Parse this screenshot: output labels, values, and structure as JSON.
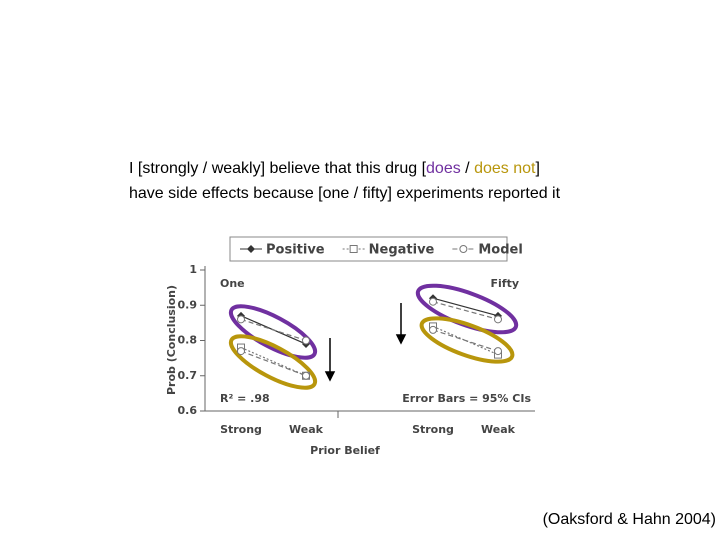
{
  "slide": {
    "line1_a": "I [strongly / weakly] believe that this drug [",
    "does": "does",
    "sep": " / ",
    "does_not": "does not",
    "line1_b": "]",
    "line2": "have side effects because [one / fifty] experiments reported it",
    "citation": "(Oaksford & Hahn 2004)"
  },
  "chart_data": {
    "type": "line",
    "y_label": "Prob (Conclusion)",
    "x_label": "Prior Belief",
    "panel_labels": [
      "One",
      "Fifty"
    ],
    "annotations": [
      "R² = .98",
      "Error Bars = 95% CIs"
    ],
    "categories": [
      "Strong",
      "Weak",
      null,
      "Strong",
      "Weak"
    ],
    "ylim": [
      0.6,
      1
    ],
    "yticks": [
      0.6,
      0.7,
      0.8,
      0.9,
      1
    ],
    "series": [
      {
        "name": "Positive",
        "color": "#333333",
        "marker": "diamond",
        "values": [
          0.87,
          0.79,
          null,
          0.92,
          0.87
        ]
      },
      {
        "name": "Negative",
        "color": "#777777",
        "marker": "square",
        "values": [
          0.78,
          0.7,
          null,
          0.84,
          0.76
        ]
      },
      {
        "name": "Model",
        "color": "#777777",
        "marker": "circle",
        "values": [
          0.86,
          0.8,
          null,
          0.91,
          0.86
        ]
      },
      {
        "name": "Model",
        "color": "#777777",
        "marker": "circle",
        "values": [
          0.77,
          0.7,
          null,
          0.83,
          0.77
        ]
      }
    ]
  }
}
